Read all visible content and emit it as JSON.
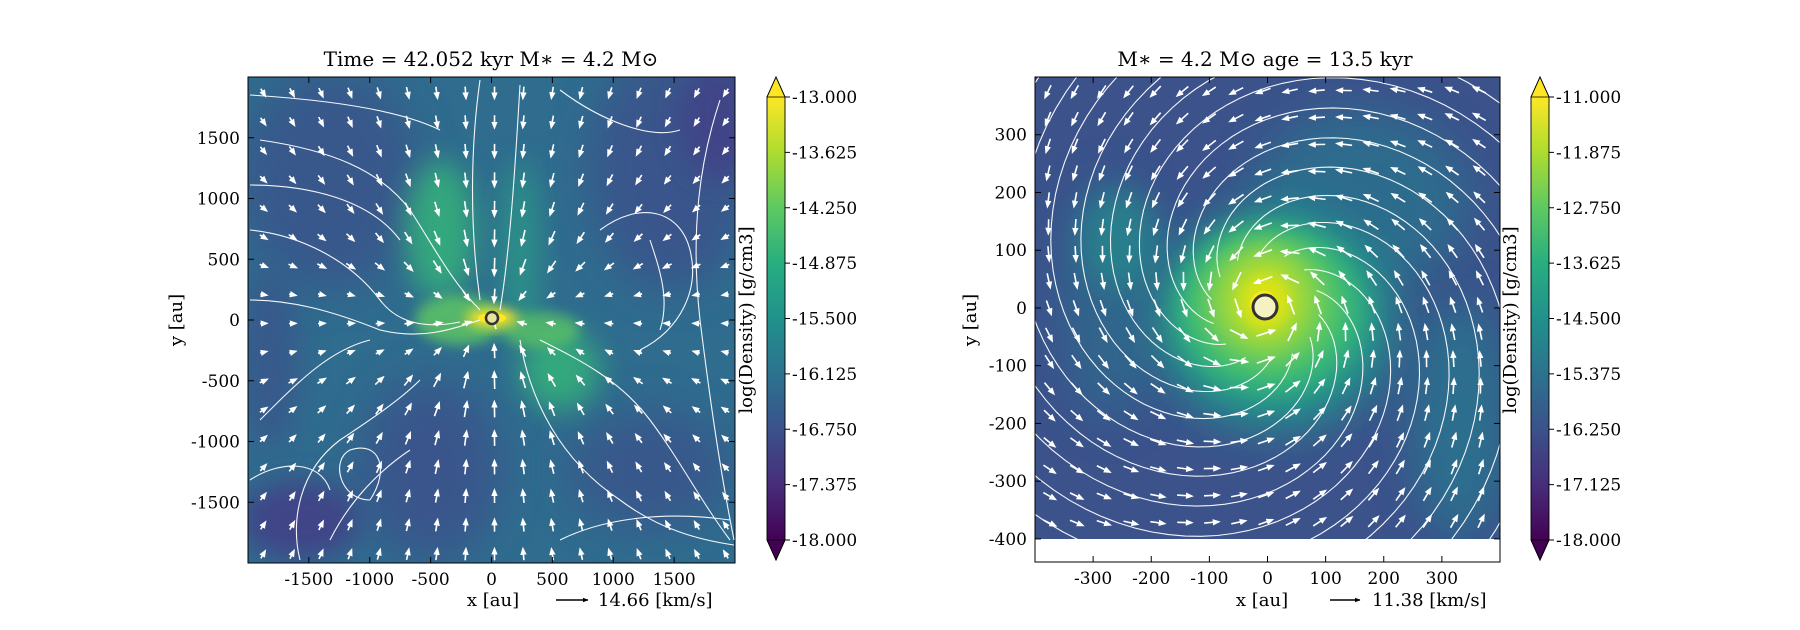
{
  "chart_data": [
    {
      "type": "heatmap",
      "title": "Time = 42.052 kyr    M$_*$ = 4.2 M$_\\odot$",
      "title_display": "Time = 42.052 kyr    M∗ = 4.2 M⊙",
      "xlabel": "x [au]",
      "ylabel": "y [au]",
      "xlim": [
        -2000,
        2000
      ],
      "ylim": [
        -2000,
        2000
      ],
      "xticks": [
        -1500,
        -1000,
        -500,
        0,
        500,
        1000,
        1500
      ],
      "xtick_labels": [
        "-1500",
        "-1000",
        "-500",
        "0",
        "500",
        "1000",
        "1500"
      ],
      "yticks": [
        1500,
        1000,
        500,
        0,
        -500,
        -1000,
        -1500
      ],
      "ytick_labels": [
        "1500",
        "1000",
        "500",
        "0",
        "-500",
        "-1000",
        "-1500"
      ],
      "star_position": [
        0,
        0
      ],
      "velocity_key_label": "14.66 [km/s]",
      "colorbar": {
        "label": "log(Density) [g/cm3]",
        "range": [
          -18.0,
          -13.0
        ],
        "ticks": [
          -13.0,
          -13.625,
          -14.25,
          -14.875,
          -15.5,
          -16.125,
          -16.75,
          -17.375,
          -18.0
        ],
        "tick_labels": [
          "-13.000",
          "-13.625",
          "-14.250",
          "-14.875",
          "-15.500",
          "-16.125",
          "-16.750",
          "-17.375",
          "-18.000"
        ],
        "colormap": "viridis",
        "extend": "both"
      },
      "grid": false
    },
    {
      "type": "heatmap",
      "title": "M$_*$ = 4.2 M$_\\odot$          age = 13.5 kyr",
      "title_display": "M∗ = 4.2 M⊙          age = 13.5 kyr",
      "xlabel": "x [au]",
      "ylabel": "y [au]",
      "xlim": [
        -400,
        400
      ],
      "ylim": [
        -440,
        400
      ],
      "data_extent_y": [
        -400,
        400
      ],
      "xticks": [
        -300,
        -200,
        -100,
        0,
        100,
        200,
        300
      ],
      "xtick_labels": [
        "-300",
        "-200",
        "-100",
        "0",
        "100",
        "200",
        "300"
      ],
      "yticks": [
        300,
        200,
        100,
        0,
        -100,
        -200,
        -300,
        -400
      ],
      "ytick_labels": [
        "300",
        "200",
        "100",
        "0",
        "-100",
        "-200",
        "-300",
        "-400"
      ],
      "star_position": [
        0,
        0
      ],
      "velocity_key_label": "11.38 [km/s]",
      "colorbar": {
        "label": "log(Density) [g/cm3]",
        "range": [
          -18.0,
          -11.0
        ],
        "ticks": [
          -11.0,
          -11.875,
          -12.75,
          -13.625,
          -14.5,
          -15.375,
          -16.25,
          -17.125,
          -18.0
        ],
        "tick_labels": [
          "-11.000",
          "-11.875",
          "-12.750",
          "-13.625",
          "-14.500",
          "-15.375",
          "-16.250",
          "-17.125",
          "-18.000"
        ],
        "colormap": "viridis",
        "extend": "both"
      },
      "grid": false
    }
  ]
}
